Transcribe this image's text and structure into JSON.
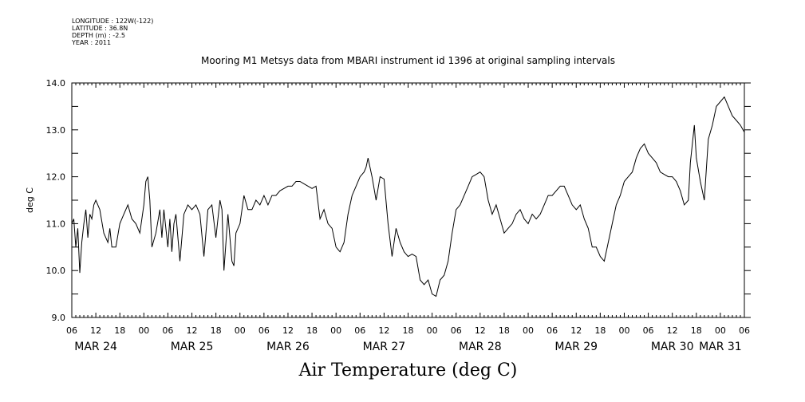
{
  "meta": {
    "longitude": "LONGITUDE : 122W(-122)",
    "latitude": "LATITUDE : 36.8N",
    "depth": "DEPTH (m) : -2.5",
    "year": "YEAR : 2011"
  },
  "chart_data": {
    "type": "line",
    "title": "Mooring M1 Metsys data from MBARI instrument id 1396 at original sampling intervals",
    "ylabel": "deg C",
    "xlabel": "Air Temperature (deg C)",
    "ylim": [
      9.0,
      14.0
    ],
    "y_ticks": [
      "9.0",
      "10.0",
      "11.0",
      "12.0",
      "13.0",
      "14.0"
    ],
    "x_range_hours": [
      0,
      168
    ],
    "hour_tick_labels": [
      "06",
      "12",
      "18",
      "00",
      "06",
      "12",
      "18",
      "00",
      "06",
      "12",
      "18",
      "00",
      "06",
      "12",
      "18",
      "00",
      "06",
      "12",
      "18",
      "00",
      "06",
      "12",
      "18",
      "00",
      "06",
      "12",
      "18",
      "00",
      "06"
    ],
    "day_labels": [
      "MAR 24",
      "MAR 25",
      "MAR 26",
      "MAR 27",
      "MAR 28",
      "MAR 29",
      "MAR 30",
      "MAR 31"
    ],
    "series": [
      {
        "x": [
          0,
          0.5,
          1,
          1.5,
          2,
          2.5,
          3,
          3.5,
          4,
          4.5,
          5,
          5.5,
          6,
          7,
          8,
          9,
          9.5,
          10,
          11,
          12,
          13,
          14,
          15,
          16,
          17,
          18,
          18.5,
          19,
          19.5,
          20,
          21,
          22,
          22.5,
          23,
          24,
          24.5,
          25,
          25.5,
          26,
          27,
          28,
          28.5,
          29,
          30,
          31,
          32,
          33,
          34,
          35,
          36,
          37,
          37.5,
          38,
          39,
          40,
          40.5,
          41,
          42,
          43,
          44,
          45,
          46,
          47,
          48,
          49,
          50,
          51,
          52,
          53,
          54,
          55,
          56,
          57,
          58,
          59,
          60,
          61,
          62,
          63,
          64,
          65,
          66,
          67,
          68,
          69,
          70,
          71,
          72,
          73,
          73.5,
          74,
          75,
          76,
          77,
          78,
          79,
          80,
          81,
          82,
          83,
          84,
          85,
          86,
          87,
          88,
          89,
          90,
          91,
          92,
          93,
          94,
          95,
          96,
          97,
          98,
          99,
          100,
          101,
          102,
          103,
          104,
          105,
          106,
          107,
          108,
          109,
          110,
          111,
          112,
          113,
          114,
          115,
          116,
          117,
          118,
          119,
          120,
          121,
          122,
          123,
          124,
          125,
          126,
          127,
          128,
          129,
          130,
          131,
          132,
          133,
          134,
          135,
          136,
          137,
          138,
          139,
          140,
          141,
          142,
          143,
          144,
          145,
          146,
          147,
          148,
          149,
          150,
          151,
          152,
          153,
          154,
          154.5,
          155,
          155.5,
          156,
          157,
          158,
          159,
          160,
          161,
          162,
          163,
          164,
          165,
          166,
          167,
          168
        ],
        "y": [
          11.0,
          11.1,
          10.5,
          10.9,
          9.95,
          10.6,
          11.0,
          11.3,
          10.7,
          11.2,
          11.1,
          11.4,
          11.5,
          11.3,
          10.8,
          10.6,
          10.9,
          10.5,
          10.5,
          11.0,
          11.2,
          11.4,
          11.1,
          11.0,
          10.8,
          11.4,
          11.9,
          12.0,
          11.5,
          10.5,
          10.8,
          11.3,
          10.7,
          11.3,
          10.5,
          11.1,
          10.4,
          11.0,
          11.2,
          10.2,
          11.2,
          11.3,
          11.4,
          11.3,
          11.4,
          11.2,
          10.3,
          11.3,
          11.4,
          10.7,
          11.5,
          11.3,
          10.0,
          11.2,
          10.2,
          10.1,
          10.8,
          11.0,
          11.6,
          11.3,
          11.3,
          11.5,
          11.4,
          11.6,
          11.4,
          11.6,
          11.6,
          11.7,
          11.75,
          11.8,
          11.8,
          11.9,
          11.9,
          11.85,
          11.8,
          11.75,
          11.8,
          11.1,
          11.3,
          11.0,
          10.9,
          10.5,
          10.4,
          10.6,
          11.2,
          11.6,
          11.8,
          12.0,
          12.1,
          12.2,
          12.4,
          12.0,
          11.5,
          12.0,
          11.95,
          11.0,
          10.3,
          10.9,
          10.6,
          10.4,
          10.3,
          10.35,
          10.3,
          9.8,
          9.7,
          9.8,
          9.5,
          9.45,
          9.8,
          9.9,
          10.2,
          10.8,
          11.3,
          11.4,
          11.6,
          11.8,
          12.0,
          12.05,
          12.1,
          12.0,
          11.5,
          11.2,
          11.4,
          11.1,
          10.8,
          10.9,
          11.0,
          11.2,
          11.3,
          11.1,
          11.0,
          11.2,
          11.1,
          11.2,
          11.4,
          11.6,
          11.6,
          11.7,
          11.8,
          11.8,
          11.6,
          11.4,
          11.3,
          11.4,
          11.1,
          10.9,
          10.5,
          10.5,
          10.3,
          10.2,
          10.6,
          11.0,
          11.4,
          11.6,
          11.9,
          12.0,
          12.1,
          12.4,
          12.6,
          12.7,
          12.5,
          12.4,
          12.3,
          12.1,
          12.05,
          12.0,
          12.0,
          11.9,
          11.7,
          11.4,
          11.5,
          12.3,
          12.7,
          13.1,
          12.4,
          11.9,
          11.5,
          12.8,
          13.1,
          13.5,
          13.6,
          13.7,
          13.5,
          13.3,
          13.2,
          13.1,
          12.95
        ]
      }
    ]
  }
}
